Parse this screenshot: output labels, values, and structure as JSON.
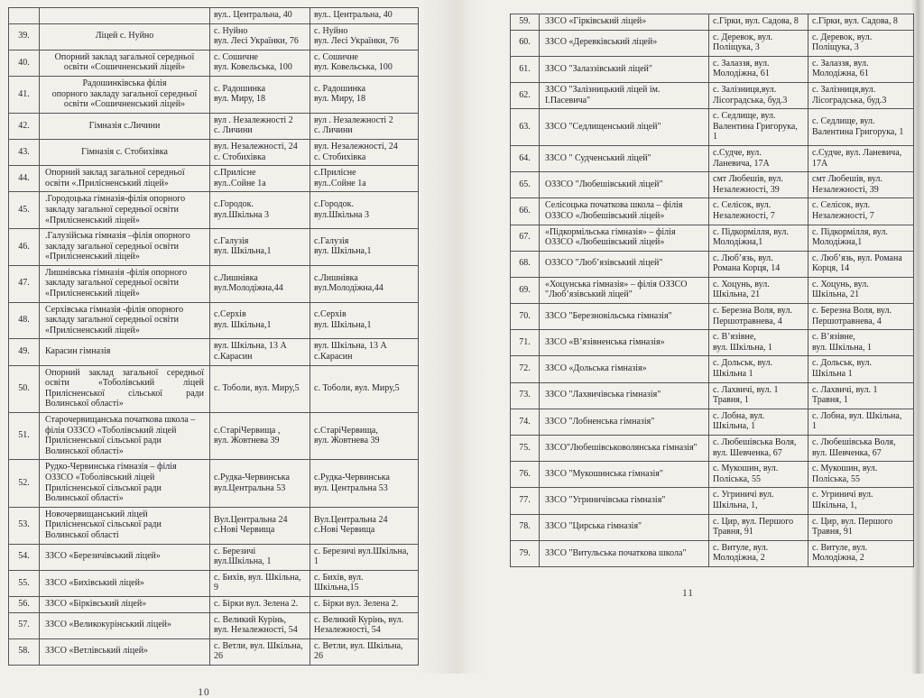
{
  "colors": {
    "paper": "#f2f0ea",
    "table_border": "#54555b",
    "text": "#24252d"
  },
  "pages": [
    {
      "page_number": "10",
      "rows": [
        {
          "num": "",
          "name": "",
          "addr1": "вул.. Центральна, 40",
          "addr2": "вул.. Центральна, 40",
          "name_align": "center"
        },
        {
          "num": "39.",
          "name": "Ліцей с. Нуйно",
          "addr1": "с. Нуйно\nвул. Лесі Українки, 76",
          "addr2": "с. Нуйно\nвул. Лесі Українки, 76",
          "name_align": "center"
        },
        {
          "num": "40.",
          "name": "Опорний заклад загальної середньої\nосвіти «Сошичненський ліцей»",
          "addr1": "с. Сошичне\nвул. Ковельська, 100",
          "addr2": "с. Сошичне\nвул. Ковельська, 100",
          "name_align": "center"
        },
        {
          "num": "41.",
          "name": "Радошинківська філія\nопорного закладу загальної середньої\nосвіти «Сошичненський ліцей»",
          "addr1": "с. Радошинка\nвул. Миру, 18",
          "addr2": "с. Радошинка\nвул. Миру, 18",
          "name_align": "center"
        },
        {
          "num": "42.",
          "name": "Гімназія с.Личини",
          "addr1": "вул . Незалежності 2\nс. Личини",
          "addr2": "вул . Незалежності 2\nс. Личини",
          "name_align": "center"
        },
        {
          "num": "43.",
          "name": "Гімназія с. Стобихівка",
          "addr1": "вул. Незалежності, 24\nс. Стобихівка",
          "addr2": "вул. Незалежності, 24\nс. Стобихівка",
          "name_align": "center"
        },
        {
          "num": "44.",
          "name": "Опорний заклад загальної середньої\nосвіти «.Прилісненський ліцей»",
          "addr1": "с.Прилісне\nвул..Сойне 1а",
          "addr2": "с.Прилісне\nвул..Сойне 1а",
          "name_align": "left"
        },
        {
          "num": "45.",
          "name": ".Городоцька гімназія-філія опорного\nзакладу загальної середньої освіти\n«Прилісненський ліцей»",
          "addr1": "с.Городок.\nвул.Шкільна 3",
          "addr2": "с.Городок.\nвул.Шкільна 3",
          "name_align": "left"
        },
        {
          "num": "46.",
          "name": ".Галузійська гімназія –філія опорного\nзакладу загальної середньої освіти\n«Прилісненський ліцей»",
          "addr1": "с.Галузія\nвул. Шкільна,1",
          "addr2": "с.Галузія\nвул. Шкільна,1",
          "name_align": "left"
        },
        {
          "num": "47.",
          "name": "Лишнівська гімназія -філія опорного\nзакладу загальної середньої освіти\n«Прилісненський ліцей»",
          "addr1": "с.Лишнівка\nвул.Молодіжна,44",
          "addr2": "с.Лишнівка\nвул.Молодіжна,44",
          "name_align": "left"
        },
        {
          "num": "48.",
          "name": "Серхівська гімназія -філія опорного\nзакладу загальної середньої освіти\n«Прилісненський ліцей»",
          "addr1": "с.Серхів\nвул. Шкільна,1",
          "addr2": "с.Серхів\nвул. Шкільна,1",
          "name_align": "left"
        },
        {
          "num": "49.",
          "name": "Карасин гімназія",
          "addr1": "вул. Шкільна, 13 А\nс.Карасин",
          "addr2": "вул. Шкільна, 13 А\nс.Карасин",
          "name_align": "left"
        },
        {
          "num": "50.",
          "name": "Опорний заклад загальної середньої освіти «Тоболівський ліцей Прилісненської сільської ради Волинської області»",
          "addr1": "с. Тоболи, вул. Миру,5",
          "addr2": "с. Тоболи, вул. Миру,5",
          "name_align": "justify"
        },
        {
          "num": "51.",
          "name": "Старочервищанська початкова школа –\nфілія ОЗЗСО «Тоболівський ліцей\nПрилісненської сільської ради\nВолинської області»",
          "addr1": "с.СтаріЧервища ,\nвул. Жовтнева 39",
          "addr2": "с.СтаріЧервища,\nвул. Жовтнева 39",
          "name_align": "left"
        },
        {
          "num": "52.",
          "name": "Рудко-Червинська гімназія – філія\nОЗЗСО «Тоболівський ліцей\nПрилісненської сільської ради\nВолинської області»",
          "addr1": "с.Рудка-Червинська\nвул.Центральна 53",
          "addr2": "с.Рудка-Червинська\nвул. Центральна 53",
          "name_align": "left"
        },
        {
          "num": "53.",
          "name": "Новочервищанський ліцей\nПрилісненської сільської ради\nВолинської області",
          "addr1": "Вул.Центральна 24\nс.Нові Червища",
          "addr2": "Вул.Центральна 24\nс.Нові Червища",
          "name_align": "left"
        },
        {
          "num": "54.",
          "name": "ЗЗСО «Березичівський ліцей»",
          "addr1": "с. Березичі\nвул.Шкільна, 1",
          "addr2": "с. Березичі вул.Шкільна,\n1",
          "name_align": "left"
        },
        {
          "num": "55.",
          "name": "ЗЗСО «Бихівський ліцей»",
          "addr1": "с. Бихів, вул. Шкільна,\n9",
          "addr2": "с. Бихів, вул.\nШкільна,15",
          "name_align": "left"
        },
        {
          "num": "56.",
          "name": "ЗЗСО «Бірківський ліцей»",
          "addr1": "с. Бірки вул. Зелена 2.",
          "addr2": "с. Бірки вул. Зелена 2.",
          "name_align": "left"
        },
        {
          "num": "57.",
          "name": "ЗЗСО «Великокурінський ліцей»",
          "addr1": "с. Великий Курінь,\nвул. Незалежності, 54",
          "addr2": "с. Великий Курінь, вул.\nНезалежності, 54",
          "name_align": "left"
        },
        {
          "num": "58.",
          "name": "ЗЗСО «Ветлівський ліцей»",
          "addr1": "с. Ветли, вул. Шкільна,\n26",
          "addr2": "с. Ветли, вул. Шкільна,\n26",
          "name_align": "left"
        }
      ]
    },
    {
      "page_number": "11",
      "rows": [
        {
          "num": "59.",
          "name": "ЗЗСО «Гірківський ліцей»",
          "addr1": "с.Гірки, вул. Садова, 8",
          "addr2": "с.Гірки, вул. Садова, 8",
          "name_align": "left"
        },
        {
          "num": "60.",
          "name": "ЗЗСО «Деревківський ліцей»",
          "addr1": "с. Деревок, вул.\nПоліщука, 3",
          "addr2": "с. Деревок, вул.\nПоліщука, 3",
          "name_align": "left"
        },
        {
          "num": "61.",
          "name": "ЗЗСО \"Залаззівський ліцей\"",
          "addr1": "с. Залаззя, вул.\nМолодіжна, 61",
          "addr2": "с. Залаззя, вул.\nМолодіжна, 61",
          "name_align": "left"
        },
        {
          "num": "62.",
          "name": "ЗЗСО \"Залізницький ліцей ім.\nІ.Пасевича\"",
          "addr1": "с. Залізниця,вул.\nЛісоградська, буд.3",
          "addr2": "с. Залізниця,вул.\nЛісоградська, буд.3",
          "name_align": "left"
        },
        {
          "num": "63.",
          "name": "ЗЗСО \"Седлищенський ліцей\"",
          "addr1": "с. Седлище, вул.\nВалентина Григорука,\n1",
          "addr2": "с. Седлище, вул.\nВалентина Григорука, 1",
          "name_align": "left"
        },
        {
          "num": "64.",
          "name": "ЗЗСО \" Судченський ліцей\"",
          "addr1": "с.Судче, вул.\nЛаневича, 17А",
          "addr2": "с.Судче, вул. Ланевича,\n17А",
          "name_align": "left"
        },
        {
          "num": "65.",
          "name": "ОЗЗСО \"Любешівський ліцей\"",
          "addr1": "смт Любешів, вул.\nНезалежності, 39",
          "addr2": "смт Любешів, вул.\nНезалежності, 39",
          "name_align": "left"
        },
        {
          "num": "66.",
          "name": "Селісоцька початкова школа – філія\nОЗЗСО «Любешівський ліцей»",
          "addr1": "с. Селісок, вул.\nНезалежності, 7",
          "addr2": "с. Селісок, вул.\nНезалежності, 7",
          "name_align": "left"
        },
        {
          "num": "67.",
          "name": "«Підкормільська гімназія» – філія\nОЗЗСО «Любешівський ліцей»",
          "addr1": "с. Підкормілля, вул.\nМолодіжна,1",
          "addr2": "с. Підкормілля, вул.\nМолодіжна,1",
          "name_align": "left"
        },
        {
          "num": "68.",
          "name": "ОЗЗСО \"Люб’язівський ліцей\"",
          "addr1": "с. Люб’язь, вул.\nРомана Корця, 14",
          "addr2": "с. Люб’язь, вул. Романа\nКорця, 14",
          "name_align": "left"
        },
        {
          "num": "69.",
          "name": "«Хоцунська гімназія» – філія ОЗЗСО\n\"Люб’язівський ліцей\"",
          "addr1": "с. Хоцунь, вул.\nШкільна, 21",
          "addr2": "с. Хоцунь, вул.\nШкільна, 21",
          "name_align": "left"
        },
        {
          "num": "70.",
          "name": "ЗЗСО \"Березновільська гімназія\"",
          "addr1": "с. Березна Воля, вул.\nПершотравнева, 4",
          "addr2": "с. Березна Воля, вул.\nПершотравнева, 4",
          "name_align": "left"
        },
        {
          "num": "71.",
          "name": "ЗЗСО «В’язівненська гімназія»",
          "addr1": "с. В’язівне,\nвул. Шкільна, 1",
          "addr2": "с. В’язівне,\nвул. Шкільна, 1",
          "name_align": "left"
        },
        {
          "num": "72.",
          "name": "ЗЗСО «Дольська гімназія»",
          "addr1": "с. Дольськ, вул.\nШкільна 1",
          "addr2": "с. Дольськ, вул.\nШкільна 1",
          "name_align": "left"
        },
        {
          "num": "73.",
          "name": "ЗЗСО \"Лахвичівська гімназія\"",
          "addr1": "с. Лахвичі, вул. 1\nТравня, 1",
          "addr2": "с. Лахвичі, вул. 1\nТравня, 1",
          "name_align": "left"
        },
        {
          "num": "74.",
          "name": "ЗЗСО \"Лобненська гімназія\"",
          "addr1": "с. Лобна, вул.\nШкільна, 1",
          "addr2": "с. Лобна, вул. Шкільна,\n1",
          "name_align": "left"
        },
        {
          "num": "75.",
          "name": "ЗЗСО\"Любешівськоволянська гімназія\"",
          "addr1": "с. Любешівська Воля,\nвул. Шевченка, 67",
          "addr2": "с. Любешівська Воля,\nвул. Шевченка, 67",
          "name_align": "left"
        },
        {
          "num": "76.",
          "name": "ЗЗСО \"Мукошинська гімназія\"",
          "addr1": "с. Мукошин, вул.\nПоліська, 55",
          "addr2": "с. Мукошин, вул.\nПоліська, 55",
          "name_align": "left"
        },
        {
          "num": "77.",
          "name": "ЗЗСО \"Угриничівська гімназія\"",
          "addr1": "с. Угриничі вул.\nШкільна, 1,",
          "addr2": "с. Угриничі вул.\nШкільна, 1,",
          "name_align": "left"
        },
        {
          "num": "78.",
          "name": "ЗЗСО \"Цирська гімназія\"",
          "addr1": "с. Цир, вул. Першого\nТравня, 91",
          "addr2": "с. Цир, вул. Першого\nТравня, 91",
          "name_align": "left"
        },
        {
          "num": "79.",
          "name": "ЗЗСО \"Витульська початкова школа\"",
          "addr1": "с. Витуле, вул.\nМолодіжна, 2",
          "addr2": "с. Витуле, вул.\nМолодіжна, 2",
          "name_align": "left"
        }
      ]
    }
  ]
}
